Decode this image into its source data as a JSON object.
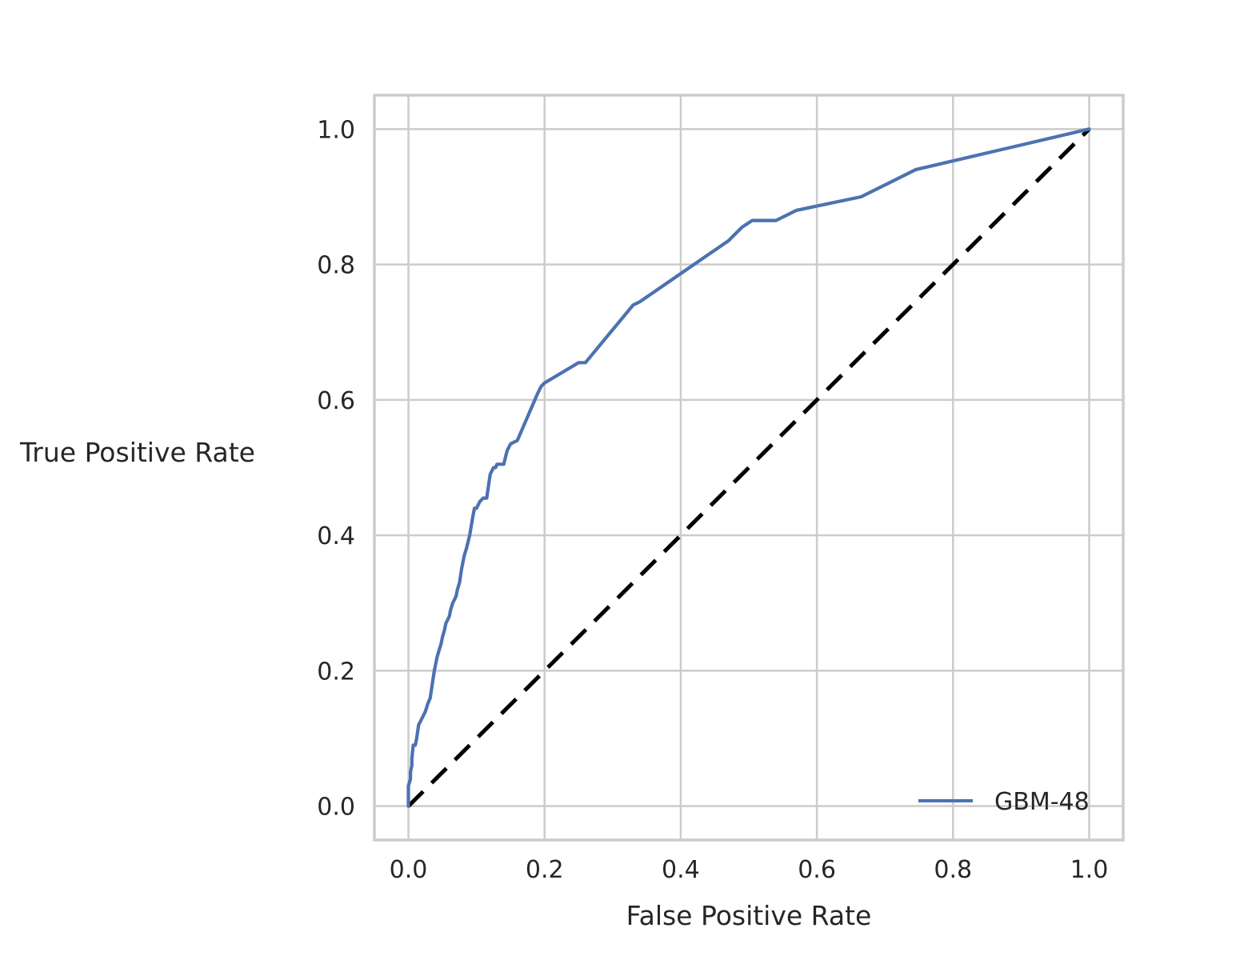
{
  "chart_data": {
    "type": "line",
    "title": "",
    "xlabel": "False Positive Rate",
    "ylabel": "True Positive Rate",
    "xlim": [
      -0.05,
      1.05
    ],
    "ylim": [
      -0.05,
      1.05
    ],
    "xticks": [
      0.0,
      0.2,
      0.4,
      0.6,
      0.8,
      1.0
    ],
    "xtick_labels": [
      "0.0",
      "0.2",
      "0.4",
      "0.6",
      "0.8",
      "1.0"
    ],
    "yticks": [
      0.0,
      0.2,
      0.4,
      0.6,
      0.8,
      1.0
    ],
    "ytick_labels": [
      "0.0",
      "0.2",
      "0.4",
      "0.6",
      "0.8",
      "1.0"
    ],
    "grid": true,
    "legend_position": "bottom-right",
    "series": [
      {
        "name": "GBM-48",
        "color": "#4c72b0",
        "style": "solid",
        "x": [
          0.0,
          0.0,
          0.003,
          0.003,
          0.005,
          0.005,
          0.007,
          0.01,
          0.012,
          0.015,
          0.02,
          0.025,
          0.028,
          0.032,
          0.035,
          0.038,
          0.042,
          0.045,
          0.048,
          0.05,
          0.053,
          0.055,
          0.06,
          0.062,
          0.065,
          0.07,
          0.072,
          0.075,
          0.078,
          0.08,
          0.082,
          0.085,
          0.09,
          0.095,
          0.097,
          0.1,
          0.105,
          0.11,
          0.115,
          0.12,
          0.125,
          0.128,
          0.13,
          0.14,
          0.145,
          0.15,
          0.16,
          0.19,
          0.195,
          0.2,
          0.25,
          0.26,
          0.33,
          0.34,
          0.47,
          0.49,
          0.505,
          0.54,
          0.57,
          0.665,
          0.745,
          1.0
        ],
        "y": [
          0.0,
          0.03,
          0.04,
          0.05,
          0.06,
          0.07,
          0.09,
          0.09,
          0.1,
          0.12,
          0.13,
          0.14,
          0.15,
          0.16,
          0.18,
          0.2,
          0.22,
          0.23,
          0.24,
          0.25,
          0.26,
          0.27,
          0.28,
          0.29,
          0.3,
          0.31,
          0.32,
          0.33,
          0.35,
          0.36,
          0.37,
          0.38,
          0.4,
          0.43,
          0.44,
          0.44,
          0.45,
          0.455,
          0.455,
          0.49,
          0.5,
          0.5,
          0.505,
          0.505,
          0.525,
          0.535,
          0.54,
          0.61,
          0.62,
          0.625,
          0.655,
          0.655,
          0.74,
          0.745,
          0.835,
          0.855,
          0.865,
          0.865,
          0.88,
          0.9,
          0.94,
          1.0
        ]
      },
      {
        "name": "",
        "color": "#000000",
        "style": "dashed",
        "x": [
          0.0,
          1.0
        ],
        "y": [
          0.0,
          1.0
        ]
      }
    ]
  }
}
